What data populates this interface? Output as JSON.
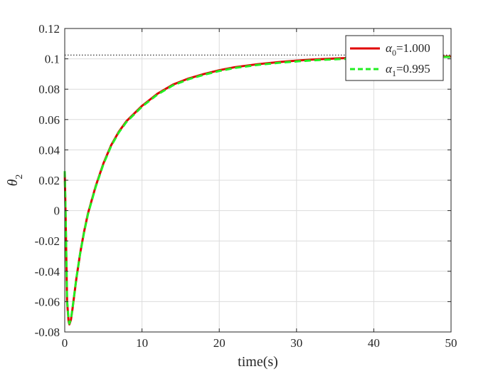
{
  "chart_data": {
    "type": "line",
    "xlabel": "time(s)",
    "ylabel": "θ",
    "ylabel_subscript": "2",
    "xlim": [
      0,
      50
    ],
    "ylim": [
      -0.08,
      0.12
    ],
    "xticks": [
      0,
      10,
      20,
      30,
      40,
      50
    ],
    "yticks": [
      -0.08,
      -0.06,
      -0.04,
      -0.02,
      0,
      0.02,
      0.04,
      0.06,
      0.08,
      0.1,
      0.12
    ],
    "xtick_labels": [
      "0",
      "10",
      "20",
      "30",
      "40",
      "50"
    ],
    "ytick_labels": [
      "-0.08",
      "-0.06",
      "-0.04",
      "-0.02",
      "0",
      "0.02",
      "0.04",
      "0.06",
      "0.08",
      "0.1",
      "0.12"
    ],
    "grid": true,
    "legend_position": "top-right",
    "reference_line": {
      "y": 0.1025,
      "style": "dotted",
      "color": "#000000"
    },
    "series": [
      {
        "name": "α",
        "name_subscript": "0",
        "name_value": "=1.000",
        "color": "#e00000",
        "style": "solid",
        "x": [
          0,
          0.1,
          0.3,
          0.5,
          0.6,
          0.8,
          1,
          1.5,
          2,
          2.5,
          3,
          4,
          5,
          6,
          7,
          8,
          10,
          12,
          14,
          16,
          18,
          20,
          22,
          25,
          28,
          30,
          32,
          35,
          38,
          40,
          45,
          50
        ],
        "y": [
          0.025,
          0.0,
          -0.06,
          -0.073,
          -0.075,
          -0.072,
          -0.065,
          -0.045,
          -0.028,
          -0.014,
          -0.002,
          0.016,
          0.031,
          0.043,
          0.052,
          0.059,
          0.069,
          0.077,
          0.083,
          0.087,
          0.09,
          0.0925,
          0.0945,
          0.0965,
          0.098,
          0.0988,
          0.0995,
          0.1002,
          0.1008,
          0.101,
          0.1014,
          0.1016
        ]
      },
      {
        "name": "α",
        "name_subscript": "1",
        "name_value": "=0.995",
        "color": "#22ee22",
        "style": "dashed",
        "x": [
          0,
          0.1,
          0.3,
          0.5,
          0.6,
          0.8,
          1,
          1.5,
          2,
          2.5,
          3,
          4,
          5,
          6,
          7,
          8,
          10,
          12,
          14,
          16,
          18,
          20,
          22,
          25,
          28,
          30,
          32,
          35,
          38,
          40,
          45,
          50
        ],
        "y": [
          0.026,
          0.001,
          -0.059,
          -0.072,
          -0.0745,
          -0.0715,
          -0.0645,
          -0.0448,
          -0.0282,
          -0.0145,
          -0.0025,
          0.0155,
          0.0305,
          0.0425,
          0.0515,
          0.0585,
          0.0685,
          0.0765,
          0.0825,
          0.0865,
          0.0895,
          0.092,
          0.094,
          0.096,
          0.0975,
          0.0983,
          0.099,
          0.0997,
          0.1003,
          0.1006,
          0.101,
          0.1013
        ]
      }
    ]
  }
}
